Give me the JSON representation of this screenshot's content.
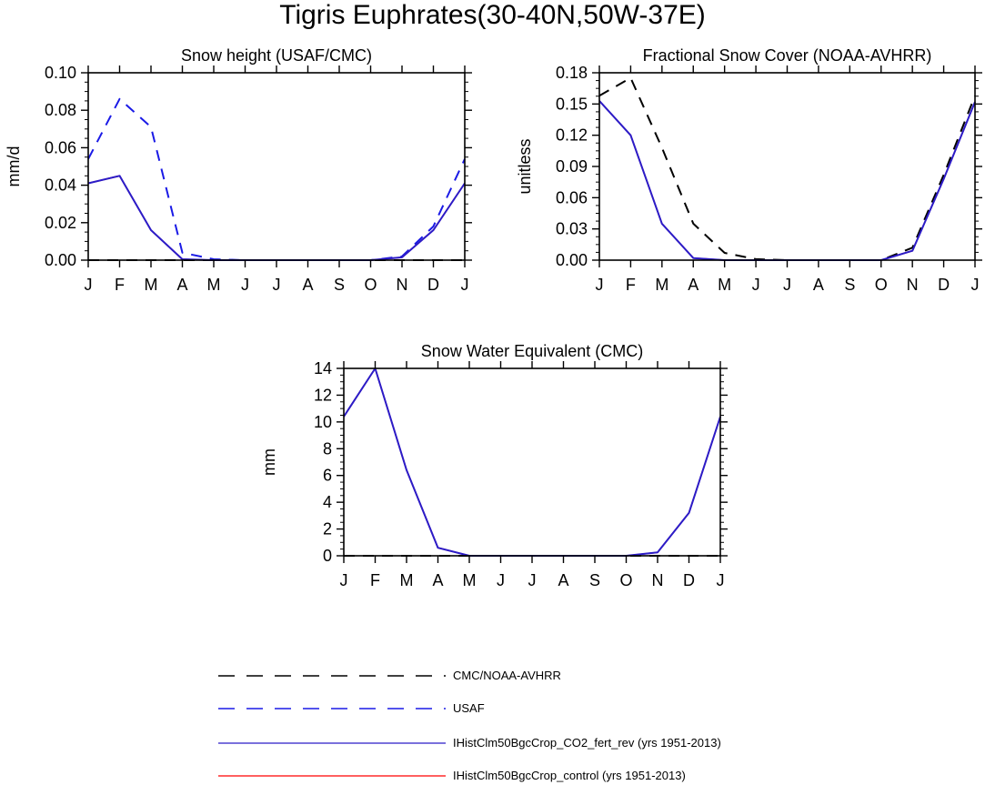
{
  "figure_title": "Tigris Euphrates(30-40N,50W-37E)",
  "colors": {
    "obs": "#000000",
    "usaf": "#1a1ae6",
    "rev": "#2b1cc8",
    "control": "#ff0000"
  },
  "chart_data": [
    {
      "type": "line",
      "title": "Snow height (USAF/CMC)",
      "ylabel": "mm/d",
      "xlabel": "",
      "categories": [
        "J",
        "F",
        "M",
        "A",
        "M",
        "J",
        "J",
        "A",
        "S",
        "O",
        "N",
        "D",
        "J"
      ],
      "ylim": [
        0,
        0.1
      ],
      "yticks": [
        0,
        0.02,
        0.04,
        0.06,
        0.08,
        0.1
      ],
      "ytick_labels": [
        "0.00",
        "0.02",
        "0.04",
        "0.06",
        "0.08",
        "0.10"
      ],
      "series": [
        {
          "name": "CMC/NOAA-AVHRR",
          "style": "obs",
          "values": [
            0,
            0,
            0,
            0,
            0,
            0,
            0,
            0,
            0,
            0,
            0,
            0,
            0
          ]
        },
        {
          "name": "USAF",
          "style": "usaf",
          "values": [
            0.054,
            0.086,
            0.071,
            0.004,
            0.0005,
            0,
            0,
            0,
            0,
            0,
            0.002,
            0.018,
            0.054
          ]
        },
        {
          "name": "IHistClm50BgcCrop_control (yrs 1951-2013)",
          "style": "control",
          "values": [
            0.041,
            0.045,
            0.016,
            0.0005,
            0,
            0,
            0,
            0,
            0,
            0,
            0.0015,
            0.016,
            0.041
          ]
        },
        {
          "name": "IHistClm50BgcCrop_CO2_fert_rev (yrs 1951-2013)",
          "style": "rev",
          "values": [
            0.041,
            0.045,
            0.016,
            0.0005,
            0,
            0,
            0,
            0,
            0,
            0,
            0.0015,
            0.016,
            0.041
          ]
        }
      ]
    },
    {
      "type": "line",
      "title": "Fractional Snow Cover (NOAA-AVHRR)",
      "ylabel": "unitless",
      "xlabel": "",
      "categories": [
        "J",
        "F",
        "M",
        "A",
        "M",
        "J",
        "J",
        "A",
        "S",
        "O",
        "N",
        "D",
        "J"
      ],
      "ylim": [
        0,
        0.18
      ],
      "yticks": [
        0,
        0.03,
        0.06,
        0.09,
        0.12,
        0.15,
        0.18
      ],
      "ytick_labels": [
        "0.00",
        "0.03",
        "0.06",
        "0.09",
        "0.12",
        "0.15",
        "0.18"
      ],
      "series": [
        {
          "name": "CMC/NOAA-AVHRR",
          "style": "obs",
          "values": [
            0.158,
            0.175,
            0.108,
            0.035,
            0.007,
            0.001,
            0,
            0,
            0,
            0,
            0.012,
            0.082,
            0.158
          ]
        },
        {
          "name": "IHistClm50BgcCrop_control (yrs 1951-2013)",
          "style": "control",
          "values": [
            0.153,
            0.12,
            0.035,
            0.002,
            0,
            0,
            0,
            0,
            0,
            0,
            0.009,
            0.078,
            0.152
          ]
        },
        {
          "name": "IHistClm50BgcCrop_CO2_fert_rev (yrs 1951-2013)",
          "style": "rev",
          "values": [
            0.153,
            0.12,
            0.035,
            0.002,
            0,
            0,
            0,
            0,
            0,
            0,
            0.009,
            0.078,
            0.152
          ]
        }
      ]
    },
    {
      "type": "line",
      "title": "Snow Water Equivalent (CMC)",
      "ylabel": "mm",
      "xlabel": "",
      "categories": [
        "J",
        "F",
        "M",
        "A",
        "M",
        "J",
        "J",
        "A",
        "S",
        "O",
        "N",
        "D",
        "J"
      ],
      "ylim": [
        0,
        14
      ],
      "yticks": [
        0,
        2,
        4,
        6,
        8,
        10,
        12,
        14
      ],
      "ytick_labels": [
        "0",
        "2",
        "4",
        "6",
        "8",
        "10",
        "12",
        "14"
      ],
      "series": [
        {
          "name": "CMC/NOAA-AVHRR",
          "style": "obs",
          "values": [
            0,
            0,
            0,
            0,
            0,
            0,
            0,
            0,
            0,
            0,
            0,
            0,
            0
          ]
        },
        {
          "name": "IHistClm50BgcCrop_control (yrs 1951-2013)",
          "style": "control",
          "values": [
            10.4,
            14,
            6.4,
            0.6,
            0,
            0,
            0,
            0,
            0,
            0,
            0.25,
            3.2,
            10.4
          ]
        },
        {
          "name": "IHistClm50BgcCrop_CO2_fert_rev (yrs 1951-2013)",
          "style": "rev",
          "values": [
            10.4,
            14,
            6.4,
            0.6,
            0,
            0,
            0,
            0,
            0,
            0,
            0.25,
            3.2,
            10.4
          ]
        }
      ]
    }
  ],
  "legend": [
    {
      "label": "CMC/NOAA-AVHRR",
      "style": "obs"
    },
    {
      "label": "USAF",
      "style": "usaf"
    },
    {
      "label": "IHistClm50BgcCrop_CO2_fert_rev (yrs 1951-2013)",
      "style": "rev"
    },
    {
      "label": "IHistClm50BgcCrop_control (yrs 1951-2013)",
      "style": "control"
    }
  ]
}
